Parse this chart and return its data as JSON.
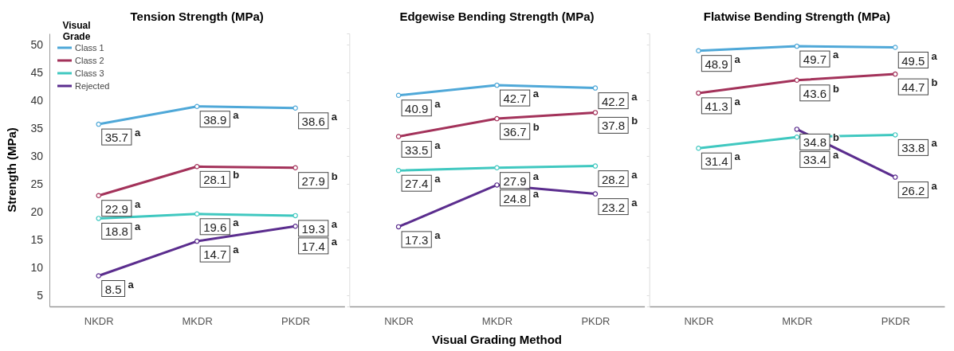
{
  "chart_data": [
    {
      "type": "line",
      "title": "Tension Strength (MPa)",
      "ylabel": "Strength (MPa)",
      "categories": [
        "NKDR",
        "MKDR",
        "PKDR"
      ],
      "ylim": [
        3,
        52
      ],
      "yticks": [
        5,
        10,
        15,
        20,
        25,
        30,
        35,
        40,
        45,
        50
      ],
      "marker": "circle",
      "legend": "top left",
      "legend_title": "Visual Grade",
      "series": [
        {
          "name": "Class 1",
          "color": "#4fa8d8",
          "values": [
            35.7,
            38.9,
            38.6
          ],
          "value_labels": [
            "35.7 a",
            "38.9 a",
            "38.6 a"
          ]
        },
        {
          "name": "Class 2",
          "color": "#a3325a",
          "values": [
            22.9,
            28.1,
            27.9
          ],
          "value_labels": [
            "22.9 a",
            "28.1 b",
            "27.9 b"
          ]
        },
        {
          "name": "Class 3",
          "color": "#40c8c0",
          "values": [
            18.8,
            19.6,
            19.3
          ],
          "value_labels": [
            "18.8 a",
            "19.6 a",
            "19.3 a"
          ]
        },
        {
          "name": "Rejected",
          "color": "#5b2d8e",
          "values": [
            8.5,
            14.7,
            17.4
          ],
          "value_labels": [
            "8.5 a",
            "14.7 a",
            "17.4 a"
          ]
        }
      ]
    },
    {
      "type": "line",
      "title": "Edgewise Bending Strength (MPa)",
      "xlabel": "Visual Grading Method",
      "categories": [
        "NKDR",
        "MKDR",
        "PKDR"
      ],
      "ylim": [
        3,
        52
      ],
      "yticks": [
        5,
        10,
        15,
        20,
        25,
        30,
        35,
        40,
        45,
        50
      ],
      "tick_labels": "x",
      "marker": "circle",
      "series": [
        {
          "color": "#4fa8d8",
          "values": [
            40.9,
            42.7,
            42.2
          ],
          "value_labels": [
            "40.9 a",
            "42.7 a",
            "42.2 a"
          ]
        },
        {
          "color": "#a3325a",
          "values": [
            33.5,
            36.7,
            37.8
          ],
          "value_labels": [
            "33.5 a",
            "36.7 b",
            "37.8 b"
          ]
        },
        {
          "color": "#40c8c0",
          "values": [
            27.4,
            27.9,
            28.2
          ],
          "value_labels": [
            "27.4 a",
            "27.9 a",
            "28.2 a"
          ]
        },
        {
          "color": "#5b2d8e",
          "values": [
            17.3,
            24.8,
            23.2
          ],
          "value_labels": [
            "17.3 a",
            "24.8 a",
            "23.2 a"
          ]
        }
      ]
    },
    {
      "type": "line",
      "title": "Flatwise Bending Strength (MPa)",
      "categories": [
        "NKDR",
        "MKDR",
        "PKDR"
      ],
      "ylim": [
        3,
        52
      ],
      "yticks": [
        5,
        10,
        15,
        20,
        25,
        30,
        35,
        40,
        45,
        50
      ],
      "tick_labels": "x",
      "marker": "circle",
      "series": [
        {
          "color": "#4fa8d8",
          "values": [
            48.9,
            49.7,
            49.5
          ],
          "value_labels": [
            "48.9 a",
            "49.7 a",
            "49.5 a"
          ]
        },
        {
          "color": "#a3325a",
          "values": [
            41.3,
            43.6,
            44.7
          ],
          "value_labels": [
            "41.3 a",
            "43.6 b",
            "44.7 b"
          ]
        },
        {
          "color": "#40c8c0",
          "values": [
            31.4,
            33.4,
            33.8
          ],
          "value_labels": [
            "31.4 a",
            "33.4 a",
            "33.8 a"
          ]
        },
        {
          "color": "#5b2d8e",
          "values": [
            null,
            34.8,
            26.2
          ],
          "value_labels": [
            null,
            "34.8 b",
            "26.2 a"
          ]
        }
      ]
    }
  ]
}
